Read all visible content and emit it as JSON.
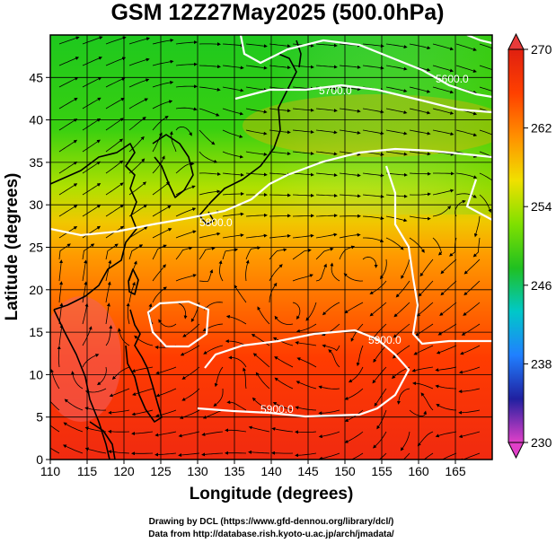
{
  "title": "GSM 12Z27May2025 (500.0hPa)",
  "xaxis": {
    "label": "Longitude (degrees)",
    "range": [
      110,
      170
    ],
    "ticks": [
      110,
      115,
      120,
      125,
      130,
      135,
      140,
      145,
      150,
      155,
      160,
      165
    ]
  },
  "yaxis": {
    "label": "Latitude  (degrees)",
    "range": [
      0,
      50
    ],
    "ticks": [
      0,
      5,
      10,
      15,
      20,
      25,
      30,
      35,
      40,
      45
    ]
  },
  "colorbar": {
    "range": [
      230,
      270
    ],
    "ticks": [
      230,
      238,
      246,
      254,
      262,
      270
    ],
    "colors": [
      "#e040c8",
      "#2020a0",
      "#2080ff",
      "#00c8c8",
      "#20c020",
      "#80e000",
      "#f0e000",
      "#ff9000",
      "#ff4000",
      "#e02010"
    ]
  },
  "contours": [
    {
      "label": "5600.0"
    },
    {
      "label": "5700.0"
    },
    {
      "label": "5800.0"
    },
    {
      "label": "5900.0"
    },
    {
      "label": "5900.0"
    }
  ],
  "credits": {
    "line1": "Drawing by DCL (https://www.gfd-dennou.org/library/dcl/)",
    "line2": "Data from http://database.rish.kyoto-u.ac.jp/arch/jmadata/"
  },
  "chart_data": {
    "type": "heatmap",
    "title": "GSM 12Z27May2025 (500.0hPa)",
    "xlabel": "Longitude (degrees)",
    "ylabel": "Latitude  (degrees)",
    "xlim": [
      110,
      170
    ],
    "ylim": [
      0,
      50
    ],
    "colorbar_range": [
      230,
      270
    ],
    "contour_levels": [
      5600,
      5700,
      5800,
      5900
    ],
    "grid": true
  }
}
